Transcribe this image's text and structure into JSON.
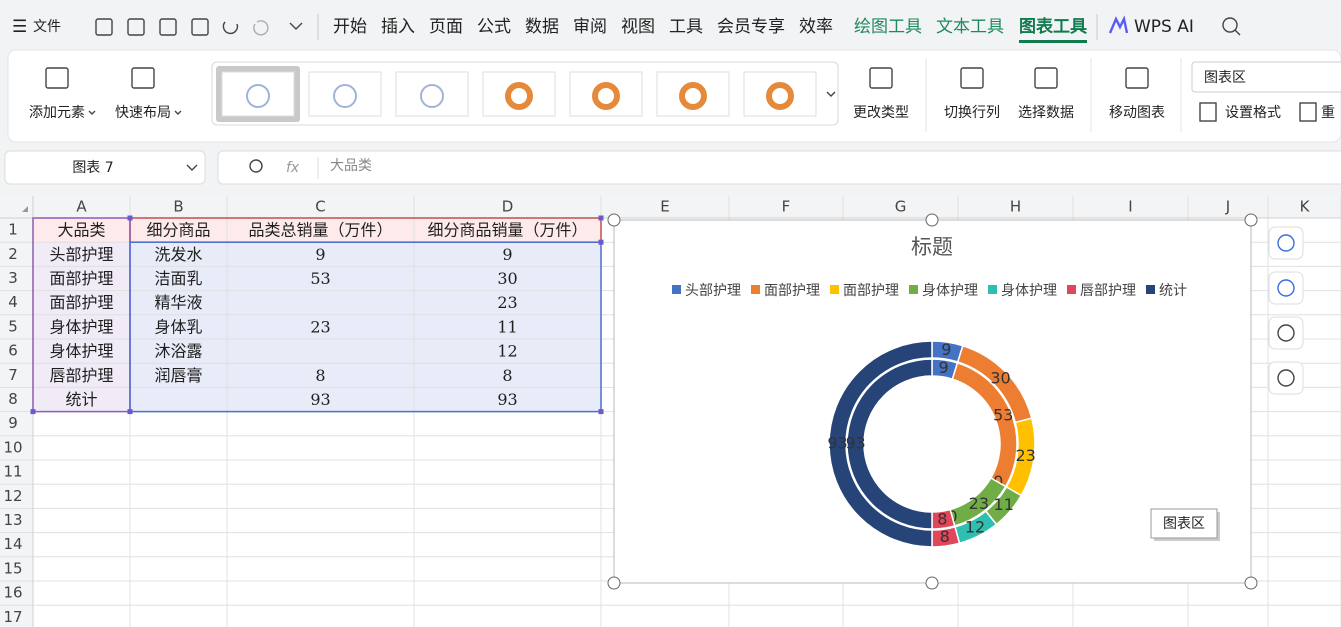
{
  "menu": {
    "file": "文件",
    "tabs": [
      "开始",
      "插入",
      "页面",
      "公式",
      "数据",
      "审阅",
      "视图",
      "工具",
      "会员专享",
      "效率"
    ],
    "tool_tabs": [
      "绘图工具",
      "文本工具",
      "图表工具"
    ],
    "ai": "WPS AI"
  },
  "ribbon": {
    "add_element": "添加元素",
    "quick_layout": "快速布局",
    "change_type": "更改类型",
    "switch_row_col": "切换行列",
    "select_data": "选择数据",
    "move_chart": "移动图表",
    "element_select": "图表区",
    "set_format": "设置格式",
    "reset": "重"
  },
  "formula_bar": {
    "name_box": "图表 7",
    "fx": "fx",
    "content": "大品类"
  },
  "sheet": {
    "columns": [
      "A",
      "B",
      "C",
      "D",
      "E",
      "F",
      "G",
      "H",
      "I",
      "J",
      "K"
    ],
    "rows": [
      1,
      2,
      3,
      4,
      5,
      6,
      7,
      8,
      9,
      10,
      11,
      12,
      13,
      14,
      15,
      16,
      17
    ],
    "cells": [
      [
        "大品类",
        "细分商品",
        "品类总销量（万件）",
        "细分商品销量（万件）"
      ],
      [
        "头部护理",
        "洗发水",
        9,
        9
      ],
      [
        "面部护理",
        "洁面乳",
        53,
        30
      ],
      [
        "面部护理",
        "精华液",
        null,
        23
      ],
      [
        "身体护理",
        "身体乳",
        23,
        11
      ],
      [
        "身体护理",
        "沐浴露",
        null,
        12
      ],
      [
        "唇部护理",
        "润唇膏",
        8,
        8
      ],
      [
        "统计",
        null,
        93,
        93
      ]
    ]
  },
  "chart_data": {
    "type": "doughnut",
    "title": "标题",
    "categories": [
      "头部护理",
      "面部护理",
      "面部护理",
      "身体护理",
      "身体护理",
      "唇部护理",
      "统计"
    ],
    "colors": [
      "#4472c4",
      "#ed7d31",
      "#ffc000",
      "#70ad47",
      "#2ebfb0",
      "#e0475b",
      "#264478"
    ],
    "series": [
      {
        "values": [
          9,
          53,
          0,
          23,
          0,
          8,
          93
        ]
      },
      {
        "values": [
          9,
          30,
          23,
          11,
          12,
          8,
          93
        ]
      }
    ],
    "legend": "top"
  },
  "tooltip": "图表区"
}
